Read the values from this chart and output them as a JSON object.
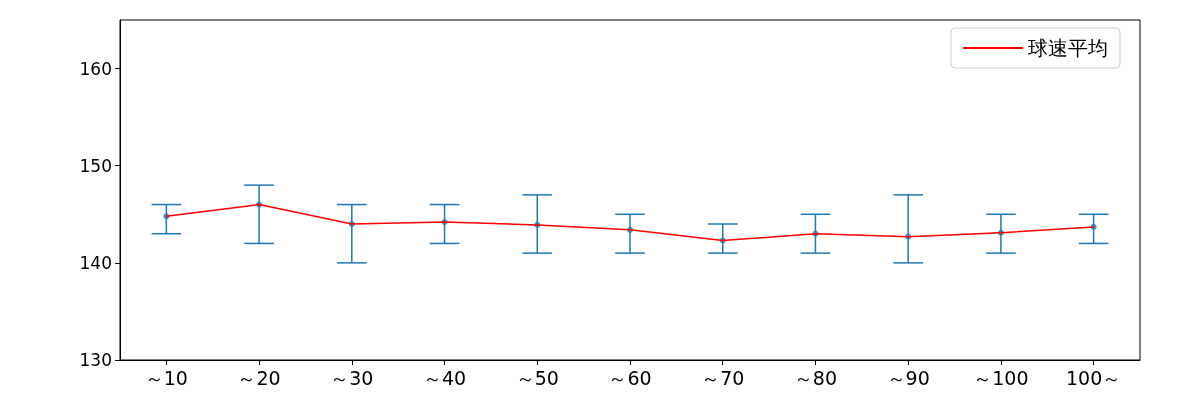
{
  "chart_data": {
    "type": "line",
    "categories": [
      "～10",
      "～20",
      "～30",
      "～40",
      "～50",
      "～60",
      "～70",
      "～80",
      "～90",
      "～100",
      "100～"
    ],
    "series": [
      {
        "type": "scatter",
        "color": "#1f77b4",
        "values": [
          144.8,
          146.0,
          144.0,
          144.2,
          143.9,
          143.4,
          142.3,
          143.0,
          142.7,
          143.1,
          143.7
        ],
        "errors": [
          [
            143,
            146
          ],
          [
            142,
            148
          ],
          [
            140,
            146
          ],
          [
            142,
            146
          ],
          [
            141,
            147
          ],
          [
            141,
            145
          ],
          [
            141,
            144
          ],
          [
            141,
            145
          ],
          [
            140,
            147
          ],
          [
            141,
            145
          ],
          [
            142,
            145
          ]
        ]
      },
      {
        "name": "球速平均",
        "color": "#ff0000",
        "values": [
          144.8,
          146.0,
          144.0,
          144.2,
          143.9,
          143.4,
          142.3,
          143.0,
          142.7,
          143.1,
          143.7
        ]
      }
    ],
    "ylim": [
      130,
      165
    ],
    "yticks": [
      130,
      140,
      150,
      160
    ],
    "legend": "top right",
    "marker": "none",
    "line_style": "solid"
  }
}
